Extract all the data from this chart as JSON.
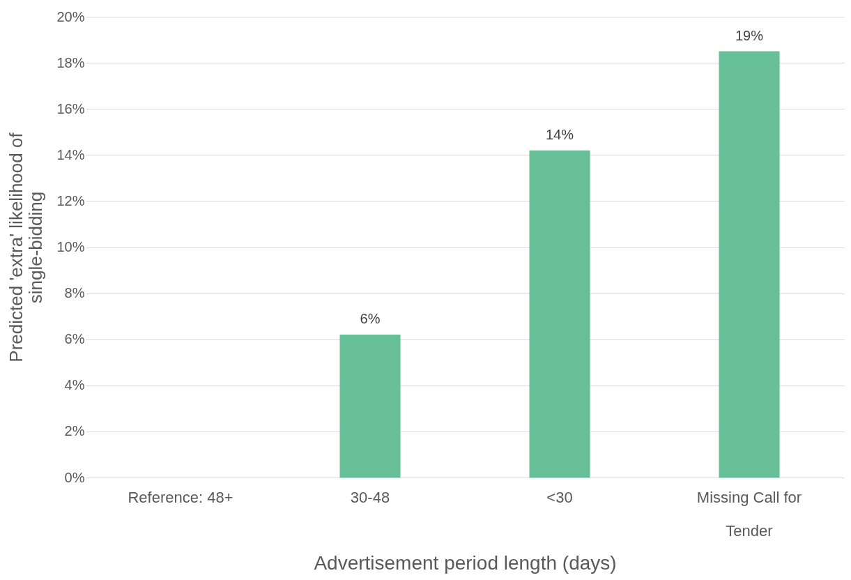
{
  "chart_data": {
    "type": "bar",
    "xlabel": "Advertisement  period length (days)",
    "ylabel": "Predicted 'extra' likelihood of single-bidding",
    "categories": [
      "Reference: 48+",
      "30-48",
      "<30",
      "Missing Call for Tender"
    ],
    "values": [
      0,
      6.2,
      14.2,
      18.5
    ],
    "value_labels": [
      null,
      "6%",
      "14%",
      "19%"
    ],
    "color": "#66bf97",
    "ylim": [
      0,
      20
    ],
    "yticks": [
      {
        "value": 0,
        "label": "0%"
      },
      {
        "value": 2,
        "label": "2%"
      },
      {
        "value": 4,
        "label": "4%"
      },
      {
        "value": 6,
        "label": "6%"
      },
      {
        "value": 8,
        "label": "8%"
      },
      {
        "value": 10,
        "label": "10%"
      },
      {
        "value": 12,
        "label": "12%"
      },
      {
        "value": 14,
        "label": "14%"
      },
      {
        "value": 16,
        "label": "16%"
      },
      {
        "value": 18,
        "label": "18%"
      },
      {
        "value": 20,
        "label": "20%"
      }
    ],
    "grid": "y"
  }
}
